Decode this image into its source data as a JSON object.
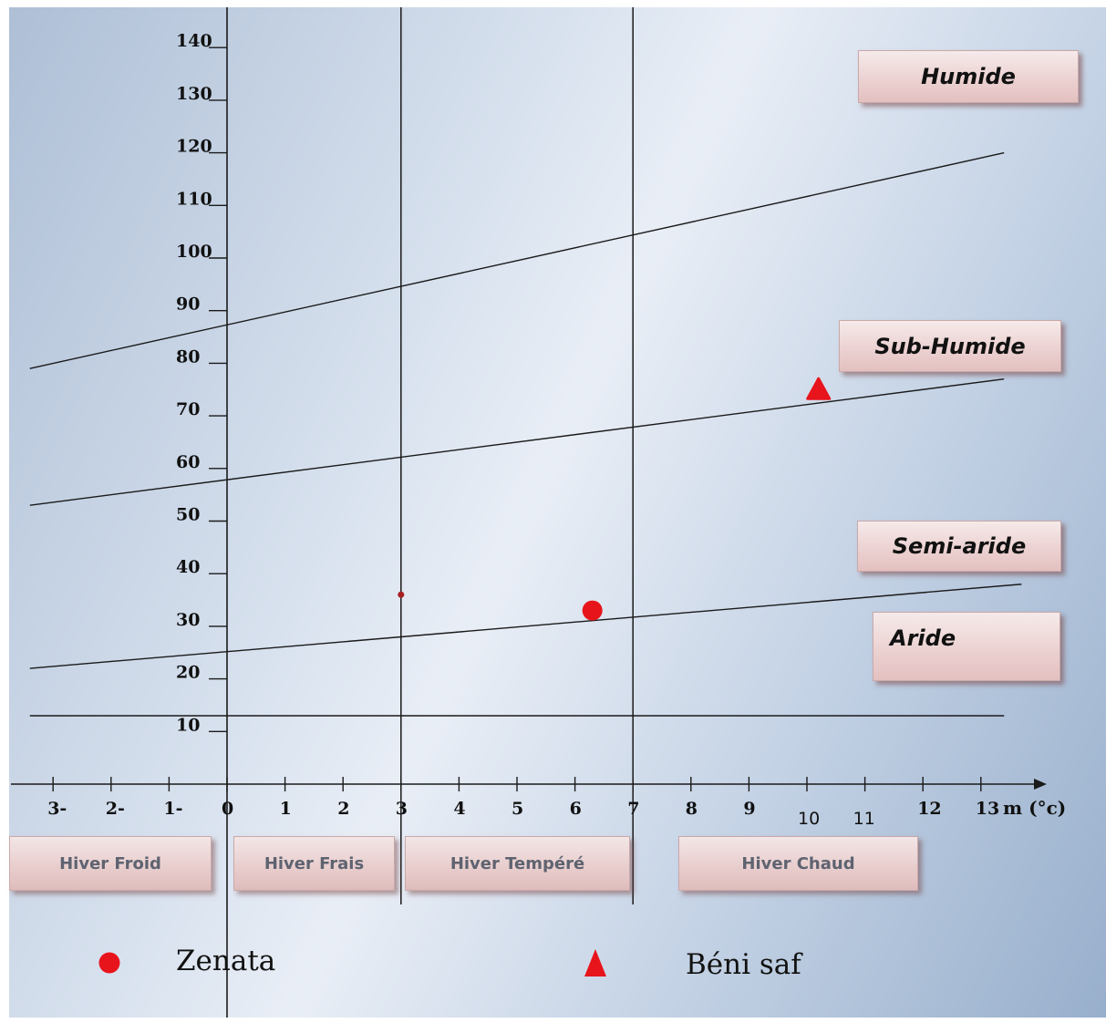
{
  "chart_data": {
    "type": "scatter",
    "title": "",
    "xlabel": "m (°c)",
    "ylabel": "",
    "xlim": [
      -3.5,
      13.7
    ],
    "ylim": [
      0,
      145
    ],
    "x_ticks": [
      {
        "value": -3,
        "label": "3-"
      },
      {
        "value": -2,
        "label": "2-"
      },
      {
        "value": -1,
        "label": "1-"
      },
      {
        "value": 0,
        "label": "0"
      },
      {
        "value": 1,
        "label": "1"
      },
      {
        "value": 2,
        "label": "2"
      },
      {
        "value": 3,
        "label": "3"
      },
      {
        "value": 4,
        "label": "4"
      },
      {
        "value": 5,
        "label": "5"
      },
      {
        "value": 6,
        "label": "6"
      },
      {
        "value": 7,
        "label": "7"
      },
      {
        "value": 8,
        "label": "8"
      },
      {
        "value": 9,
        "label": "9"
      },
      {
        "value": 10,
        "label": "10"
      },
      {
        "value": 11,
        "label": "11"
      },
      {
        "value": 12,
        "label": "12"
      },
      {
        "value": 13,
        "label": "13"
      }
    ],
    "y_ticks": [
      10,
      20,
      30,
      40,
      50,
      60,
      70,
      80,
      90,
      100,
      110,
      120,
      130,
      140
    ],
    "boundary_lines": [
      {
        "from": [
          -3.4,
          79
        ],
        "to": [
          13.4,
          120
        ]
      },
      {
        "from": [
          -3.4,
          53
        ],
        "to": [
          13.4,
          77
        ]
      },
      {
        "from": [
          -3.4,
          22
        ],
        "to": [
          13.7,
          38
        ]
      },
      {
        "from": [
          -3.4,
          13
        ],
        "to": [
          13.4,
          13
        ]
      }
    ],
    "vertical_lines": [
      3,
      7
    ],
    "points": [
      {
        "x": 6.3,
        "y": 33,
        "marker": "circle",
        "color": "#e8141c"
      },
      {
        "x": 10.2,
        "y": 75,
        "marker": "triangle",
        "color": "#e8141c"
      },
      {
        "x": 3,
        "y": 36,
        "marker": "small-dot",
        "color": "#a82020"
      }
    ],
    "zones": [
      "Humide",
      "Sub-Humide",
      "Semi-aride",
      "Aride"
    ],
    "winters": [
      "Hiver Froid",
      "Hiver Frais",
      "Hiver Tempéré",
      "Hiver Chaud"
    ]
  },
  "legend": [
    {
      "label": "Zenata",
      "marker": "circle",
      "color": "#e8141c"
    },
    {
      "label": "Béni saf",
      "marker": "triangle",
      "color": "#e8141c"
    }
  ]
}
